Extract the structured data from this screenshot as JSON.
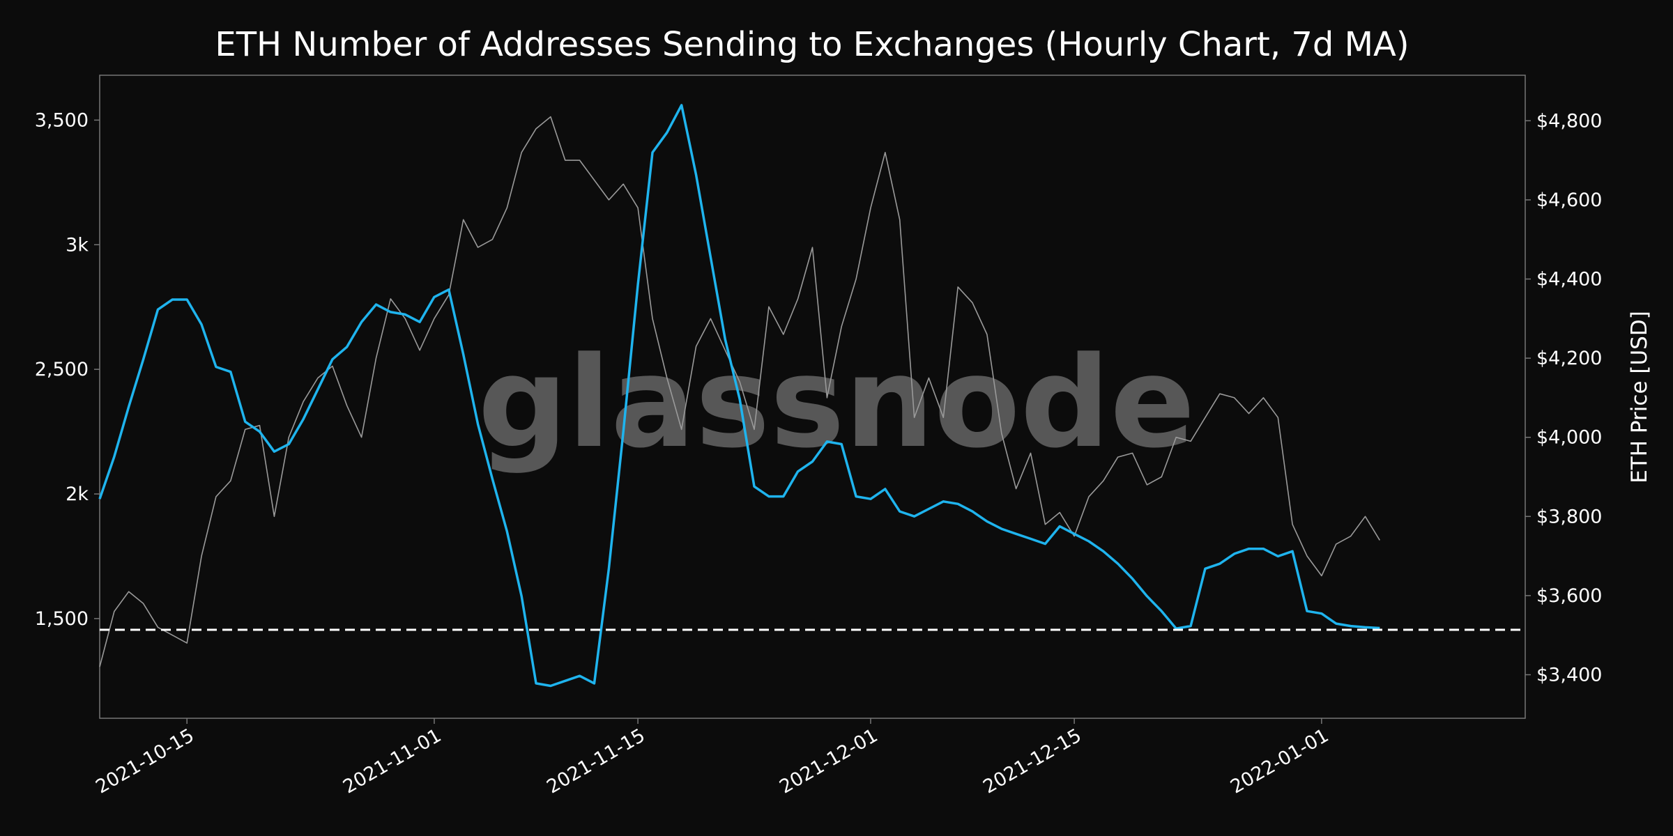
{
  "chart_data": {
    "type": "line",
    "title": "ETH Number of Addresses Sending to Exchanges (Hourly Chart, 7d MA)",
    "watermark": "glassnode",
    "x_ticks": [
      "2021-10-15",
      "2021-11-01",
      "2021-11-15",
      "2021-12-01",
      "2021-12-15",
      "2022-01-01"
    ],
    "y_left_ticks": [
      "1,500",
      "2k",
      "2,500",
      "3k",
      "3,500"
    ],
    "y_left_tick_values": [
      1500,
      2000,
      2500,
      3000,
      3500
    ],
    "y_right_ticks": [
      "$3,400",
      "$3,600",
      "$3,800",
      "$4,000",
      "$4,200",
      "$4,400",
      "$4,600",
      "$4,800"
    ],
    "y_right_tick_values": [
      3400,
      3600,
      3800,
      4000,
      4200,
      4400,
      4600,
      4800
    ],
    "y_right_label": "ETH Price [USD]",
    "x_range": [
      "2021-10-09",
      "2022-01-15"
    ],
    "y_left_range": [
      1100,
      3680
    ],
    "y_right_range": [
      3290,
      4915
    ],
    "reference_line": {
      "value": 1455,
      "style": "dashed",
      "color": "#ffffff"
    },
    "grid": false,
    "series": [
      {
        "axis": "left",
        "color": "#1fb4ee",
        "x": [
          "2021-10-09",
          "2021-10-10",
          "2021-10-11",
          "2021-10-12",
          "2021-10-13",
          "2021-10-14",
          "2021-10-15",
          "2021-10-16",
          "2021-10-17",
          "2021-10-18",
          "2021-10-19",
          "2021-10-20",
          "2021-10-21",
          "2021-10-22",
          "2021-10-23",
          "2021-10-24",
          "2021-10-25",
          "2021-10-26",
          "2021-10-27",
          "2021-10-28",
          "2021-10-29",
          "2021-10-30",
          "2021-10-31",
          "2021-11-01",
          "2021-11-02",
          "2021-11-03",
          "2021-11-04",
          "2021-11-05",
          "2021-11-06",
          "2021-11-07",
          "2021-11-08",
          "2021-11-09",
          "2021-11-10",
          "2021-11-11",
          "2021-11-12",
          "2021-11-13",
          "2021-11-14",
          "2021-11-15",
          "2021-11-16",
          "2021-11-17",
          "2021-11-18",
          "2021-11-19",
          "2021-11-20",
          "2021-11-21",
          "2021-11-22",
          "2021-11-23",
          "2021-11-24",
          "2021-11-25",
          "2021-11-26",
          "2021-11-27",
          "2021-11-28",
          "2021-11-29",
          "2021-11-30",
          "2021-12-01",
          "2021-12-02",
          "2021-12-03",
          "2021-12-04",
          "2021-12-05",
          "2021-12-06",
          "2021-12-07",
          "2021-12-08",
          "2021-12-09",
          "2021-12-10",
          "2021-12-11",
          "2021-12-12",
          "2021-12-13",
          "2021-12-14",
          "2021-12-15",
          "2021-12-16",
          "2021-12-17",
          "2021-12-18",
          "2021-12-19",
          "2021-12-20",
          "2021-12-21",
          "2021-12-22",
          "2021-12-23",
          "2021-12-24",
          "2021-12-25",
          "2021-12-26",
          "2021-12-27",
          "2021-12-28",
          "2021-12-29",
          "2021-12-30",
          "2021-12-31",
          "2022-01-01",
          "2022-01-02",
          "2022-01-03",
          "2022-01-04",
          "2022-01-05"
        ],
        "values": [
          1980,
          2150,
          2350,
          2540,
          2740,
          2780,
          2780,
          2680,
          2510,
          2490,
          2290,
          2250,
          2170,
          2200,
          2300,
          2420,
          2540,
          2590,
          2690,
          2760,
          2730,
          2720,
          2690,
          2790,
          2820,
          2560,
          2280,
          2060,
          1850,
          1590,
          1240,
          1230,
          1250,
          1270,
          1240,
          1700,
          2250,
          2840,
          3370,
          3450,
          3560,
          3280,
          2950,
          2620,
          2380,
          2030,
          1990,
          1990,
          2090,
          2130,
          2210,
          2200,
          1990,
          1980,
          2020,
          1930,
          1910,
          1940,
          1970,
          1960,
          1930,
          1890,
          1860,
          1840,
          1820,
          1800,
          1870,
          1840,
          1810,
          1770,
          1720,
          1660,
          1590,
          1530,
          1460,
          1470,
          1700,
          1720,
          1760,
          1780,
          1780,
          1750,
          1770,
          1530,
          1520,
          1480,
          1470,
          1465,
          1462
        ],
        "annotations": {}
      },
      {
        "axis": "right",
        "color": "#9a9a9a",
        "x": [
          "2021-10-09",
          "2021-10-10",
          "2021-10-11",
          "2021-10-12",
          "2021-10-13",
          "2021-10-14",
          "2021-10-15",
          "2021-10-16",
          "2021-10-17",
          "2021-10-18",
          "2021-10-19",
          "2021-10-20",
          "2021-10-21",
          "2021-10-22",
          "2021-10-23",
          "2021-10-24",
          "2021-10-25",
          "2021-10-26",
          "2021-10-27",
          "2021-10-28",
          "2021-10-29",
          "2021-10-30",
          "2021-10-31",
          "2021-11-01",
          "2021-11-02",
          "2021-11-03",
          "2021-11-04",
          "2021-11-05",
          "2021-11-06",
          "2021-11-07",
          "2021-11-08",
          "2021-11-09",
          "2021-11-10",
          "2021-11-11",
          "2021-11-12",
          "2021-11-13",
          "2021-11-14",
          "2021-11-15",
          "2021-11-16",
          "2021-11-17",
          "2021-11-18",
          "2021-11-19",
          "2021-11-20",
          "2021-11-21",
          "2021-11-22",
          "2021-11-23",
          "2021-11-24",
          "2021-11-25",
          "2021-11-26",
          "2021-11-27",
          "2021-11-28",
          "2021-11-29",
          "2021-11-30",
          "2021-12-01",
          "2021-12-02",
          "2021-12-03",
          "2021-12-04",
          "2021-12-05",
          "2021-12-06",
          "2021-12-07",
          "2021-12-08",
          "2021-12-09",
          "2021-12-10",
          "2021-12-11",
          "2021-12-12",
          "2021-12-13",
          "2021-12-14",
          "2021-12-15",
          "2021-12-16",
          "2021-12-17",
          "2021-12-18",
          "2021-12-19",
          "2021-12-20",
          "2021-12-21",
          "2021-12-22",
          "2021-12-23",
          "2021-12-24",
          "2021-12-25",
          "2021-12-26",
          "2021-12-27",
          "2021-12-28",
          "2021-12-29",
          "2021-12-30",
          "2021-12-31",
          "2022-01-01",
          "2022-01-02",
          "2022-01-03",
          "2022-01-04",
          "2022-01-05"
        ],
        "values": [
          3420,
          3560,
          3610,
          3580,
          3520,
          3500,
          3480,
          3700,
          3850,
          3890,
          4020,
          4030,
          3800,
          4000,
          4090,
          4150,
          4180,
          4080,
          4000,
          4200,
          4350,
          4300,
          4220,
          4300,
          4360,
          4550,
          4480,
          4500,
          4580,
          4720,
          4780,
          4810,
          4700,
          4700,
          4650,
          4600,
          4640,
          4580,
          4300,
          4150,
          4020,
          4230,
          4300,
          4220,
          4140,
          4020,
          4330,
          4260,
          4350,
          4480,
          4100,
          4280,
          4400,
          4580,
          4720,
          4550,
          4050,
          4150,
          4050,
          4380,
          4340,
          4260,
          4010,
          3870,
          3960,
          3780,
          3810,
          3750,
          3850,
          3890,
          3950,
          3960,
          3880,
          3900,
          4000,
          3990,
          4050,
          4110,
          4100,
          4060,
          4100,
          4050,
          3780,
          3700,
          3650,
          3730,
          3750,
          3800,
          3740
        ],
        "annotations": {}
      }
    ]
  }
}
